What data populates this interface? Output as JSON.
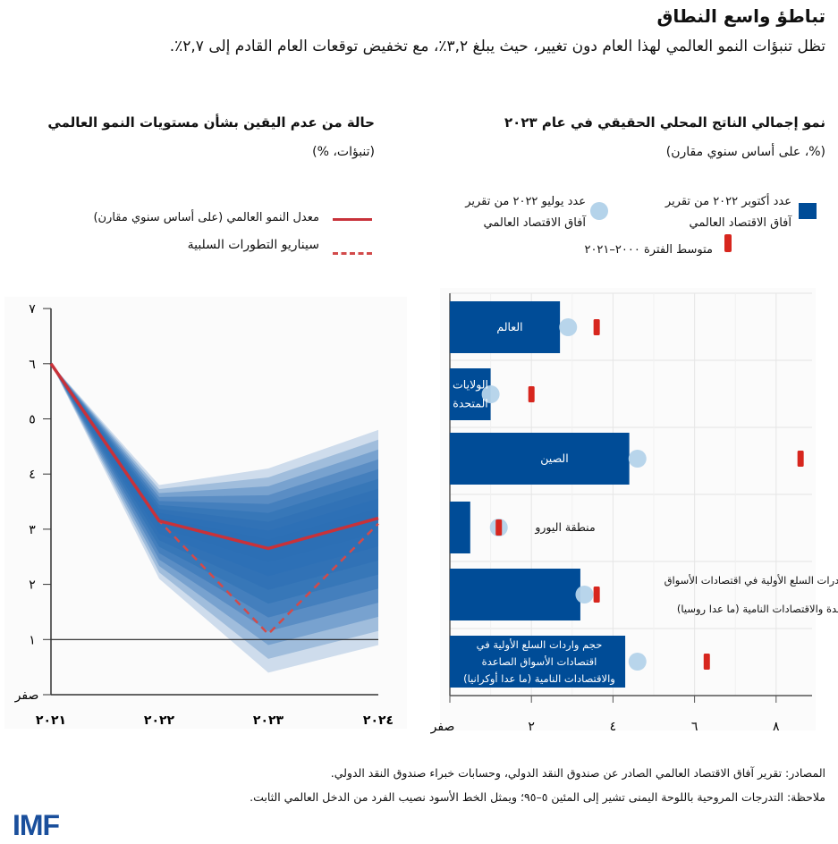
{
  "header": {
    "title": "تباطؤ واسع النطاق",
    "subtitle": "تظل تنبؤات النمو العالمي لهذا العام دون تغيير، حيث يبلغ ٣,٢٪، مع تخفيض توقعات العام القادم إلى ٢,٧٪."
  },
  "colors": {
    "bar": "#004c97",
    "dot": "#b4d3ea",
    "avg": "#d7261e",
    "median": "#c8323a",
    "fan": "#2c6fb5"
  },
  "chart_data": [
    {
      "type": "area",
      "title": "حالة من عدم اليقين بشأن مستويات النمو العالمي",
      "subtitle": "(تنبؤات، %)",
      "legend": {
        "median": "معدل النمو العالمي  (على أساس سنوي مقارن)",
        "downside": "سيناريو التطورات السلبية"
      },
      "categories": [
        "٢٠٢١",
        "٢٠٢٢",
        "٢٠٢٣",
        "٢٠٢٤"
      ],
      "yticks": [
        "صفر",
        "١",
        "٢",
        "٣",
        "٤",
        "٥",
        "٦",
        "٧"
      ],
      "ylim": [
        0,
        7
      ],
      "median": [
        6.0,
        3.15,
        2.65,
        3.2
      ],
      "downside": [
        6.0,
        3.15,
        1.1,
        3.1
      ],
      "fan_lower_5": [
        6.0,
        2.1,
        0.4,
        0.9
      ],
      "fan_upper_95": [
        6.0,
        3.8,
        4.1,
        4.8
      ],
      "reference_line": 1
    },
    {
      "type": "bar",
      "orientation": "horizontal",
      "title": "نمو إجمالي الناتج المحلي الحقيقي في عام ٢٠٢٣",
      "subtitle": "(%، على أساس سنوي مقارن)",
      "legend": {
        "oct": "عدد أكتوبر ٢٠٢٢ من تقرير",
        "oct2": "آفاق الاقتصاد العالمي",
        "jul": "عدد يوليو ٢٠٢٢ من تقرير",
        "jul2": "آفاق الاقتصاد العالمي",
        "avg": "متوسط الفترة ٢٠٠٠–٢٠٢١"
      },
      "xticks": [
        "صفر",
        "٢",
        "٤",
        "٦",
        "٨"
      ],
      "xlim": [
        0,
        8.3
      ],
      "categories": [
        "العالم",
        "الولايات المتحدة",
        "الصين",
        "منطقة اليورو",
        "حجم صادرات السلع الأولية في اقتصادات الأسواق الصاعدة والاقتصادات النامية (ما عدا روسيا)",
        "حجم واردات السلع الأولية في اقتصادات الأسواق الصاعدة والاقتصادات النامية (ما عدا أوكرانيا)"
      ],
      "october_2022": [
        2.7,
        1.0,
        4.4,
        0.5,
        3.2,
        4.3
      ],
      "july_2022": [
        2.9,
        1.0,
        4.6,
        1.2,
        3.3,
        4.6
      ],
      "average_2000_2021": [
        3.6,
        2.0,
        8.6,
        1.2,
        3.6,
        6.3
      ]
    }
  ],
  "footer": {
    "sources": "المصادر: تقرير آفاق الاقتصاد العالمي الصادر عن صندوق النقد الدولي، وحسابات خبراء صندوق النقد الدولي.",
    "note": "ملاحظة: التدرجات المروحية باللوحة اليمنى تشير إلى المئين ٥–٩٥؛ ويمثل الخط الأسود نصيب الفرد من الدخل العالمي الثابت.",
    "logo": "IMF"
  }
}
